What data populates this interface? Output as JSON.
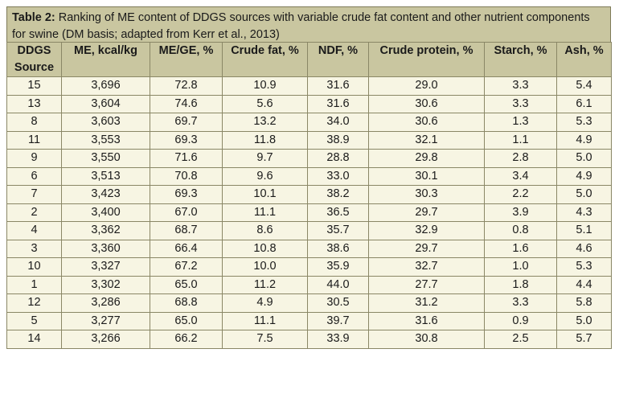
{
  "caption": {
    "label": "Table 2:",
    "text": " Ranking of ME content of DDGS sources with variable crude fat content and other nutrient components for swine (DM basis; adapted from Kerr et al., 2013)"
  },
  "columns": [
    "DDGS Source",
    "ME, kcal/kg",
    "ME/GE, %",
    "Crude fat, %",
    "NDF, %",
    "Crude protein, %",
    "Starch, %",
    "Ash, %"
  ],
  "header_lines": {
    "col0_line1": "DDGS",
    "col0_line2": "Source"
  },
  "rows": [
    [
      "15",
      "3,696",
      "72.8",
      "10.9",
      "31.6",
      "29.0",
      "3.3",
      "5.4"
    ],
    [
      "13",
      "3,604",
      "74.6",
      "5.6",
      "31.6",
      "30.6",
      "3.3",
      "6.1"
    ],
    [
      "8",
      "3,603",
      "69.7",
      "13.2",
      "34.0",
      "30.6",
      "1.3",
      "5.3"
    ],
    [
      "11",
      "3,553",
      "69.3",
      "11.8",
      "38.9",
      "32.1",
      "1.1",
      "4.9"
    ],
    [
      "9",
      "3,550",
      "71.6",
      "9.7",
      "28.8",
      "29.8",
      "2.8",
      "5.0"
    ],
    [
      "6",
      "3,513",
      "70.8",
      "9.6",
      "33.0",
      "30.1",
      "3.4",
      "4.9"
    ],
    [
      "7",
      "3,423",
      "69.3",
      "10.1",
      "38.2",
      "30.3",
      "2.2",
      "5.0"
    ],
    [
      "2",
      "3,400",
      "67.0",
      "11.1",
      "36.5",
      "29.7",
      "3.9",
      "4.3"
    ],
    [
      "4",
      "3,362",
      "68.7",
      "8.6",
      "35.7",
      "32.9",
      "0.8",
      "5.1"
    ],
    [
      "3",
      "3,360",
      "66.4",
      "10.8",
      "38.6",
      "29.7",
      "1.6",
      "4.6"
    ],
    [
      "10",
      "3,327",
      "67.2",
      "10.0",
      "35.9",
      "32.7",
      "1.0",
      "5.3"
    ],
    [
      "1",
      "3,302",
      "65.0",
      "11.2",
      "44.0",
      "27.7",
      "1.8",
      "4.4"
    ],
    [
      "12",
      "3,286",
      "68.8",
      "4.9",
      "30.5",
      "31.2",
      "3.3",
      "5.8"
    ],
    [
      "5",
      "3,277",
      "65.0",
      "11.1",
      "39.7",
      "31.6",
      "0.9",
      "5.0"
    ],
    [
      "14",
      "3,266",
      "66.2",
      "7.5",
      "33.9",
      "30.8",
      "2.5",
      "5.7"
    ]
  ]
}
